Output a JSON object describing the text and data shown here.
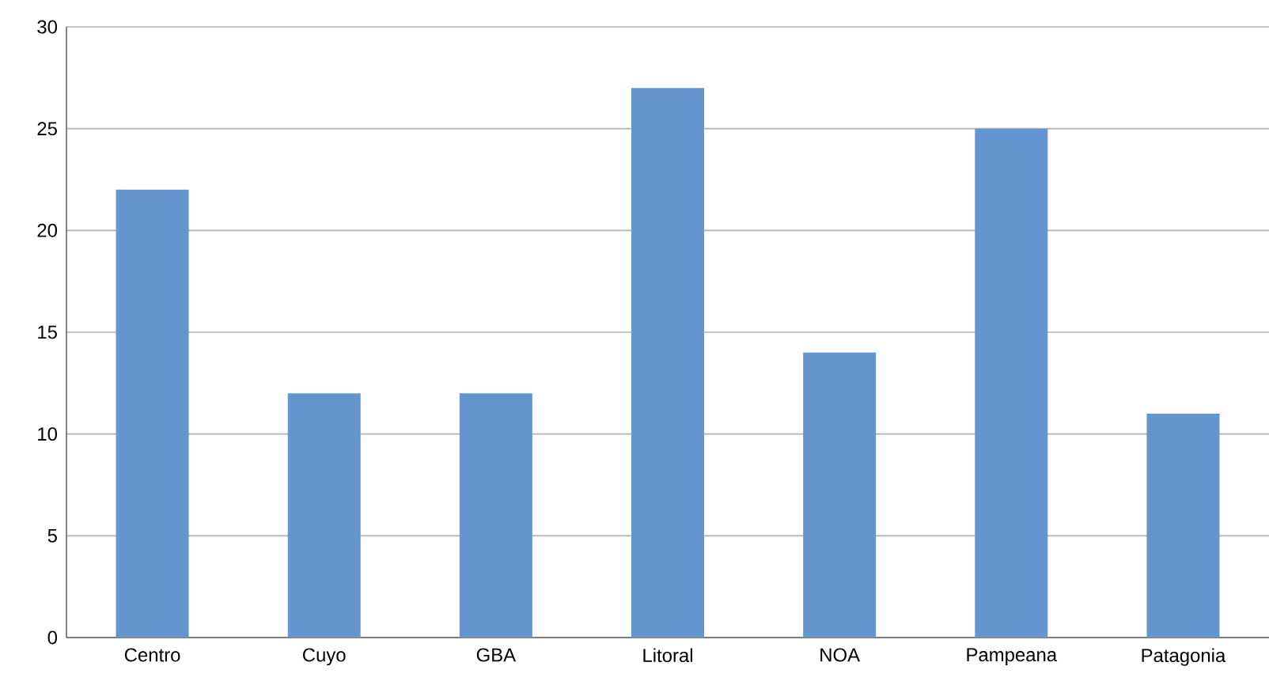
{
  "chart_data": {
    "type": "bar",
    "categories": [
      "Centro",
      "Cuyo",
      "GBA",
      "Litoral",
      "NOA",
      "Pampeana",
      "Patagonia"
    ],
    "values": [
      22,
      12,
      12,
      27,
      14,
      25,
      11
    ],
    "color": "#6595ce",
    "ylim": [
      0,
      30
    ],
    "yticks": [
      0,
      5,
      10,
      15,
      20,
      25,
      30
    ],
    "grid": "y"
  }
}
